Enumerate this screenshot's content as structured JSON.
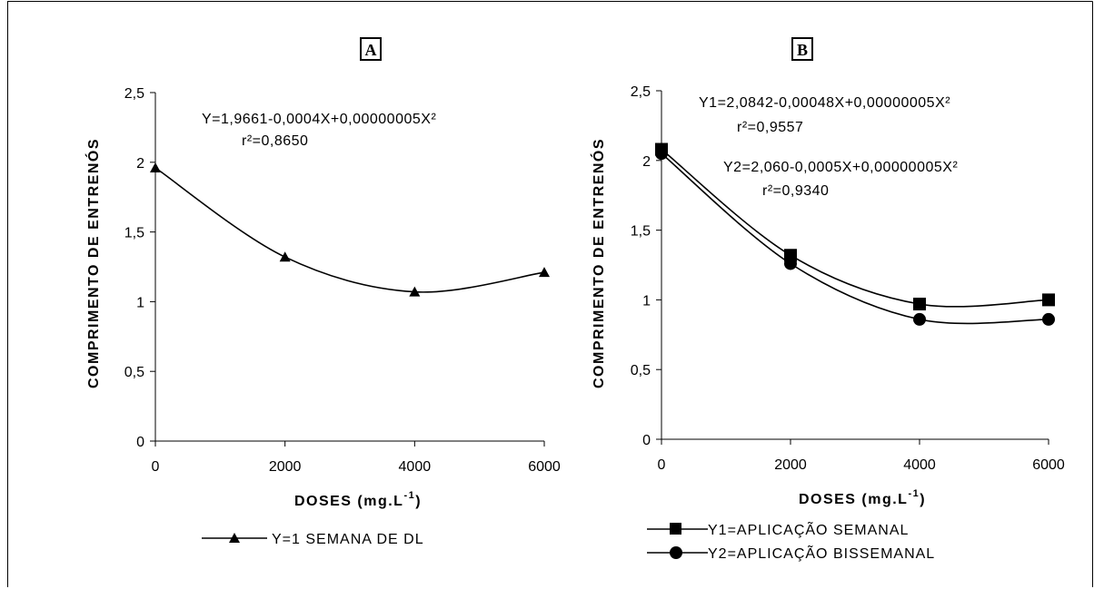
{
  "chart_data": [
    {
      "type": "line",
      "panel": "A",
      "ylabel": "COMPRIMENTO DE ENTRENÓS",
      "xlabel": "DOSES (mg.L",
      "xlabel_sup": "-1",
      "xlabel_close": ")",
      "xlim": [
        0,
        6000
      ],
      "ylim": [
        0,
        2.5
      ],
      "x_ticks": [
        "0",
        "2000",
        "4000",
        "6000"
      ],
      "y_ticks": [
        "0",
        "0,5",
        "1",
        "1,5",
        "2",
        "2,5"
      ],
      "grid": false,
      "legend_position": "bottom",
      "equations": [
        {
          "equation": "Y=1,9661-0,0004X+0,00000005X²",
          "r2": "r²=0,8650"
        }
      ],
      "series": [
        {
          "name": "Y=1 SEMANA DE DL",
          "marker": "triangle",
          "x": [
            0,
            2000,
            4000,
            6000
          ],
          "values": [
            1.96,
            1.32,
            1.07,
            1.21
          ],
          "fit": {
            "a": 1.9661,
            "b": -0.0004,
            "c": 5e-08
          }
        }
      ]
    },
    {
      "type": "line",
      "panel": "B",
      "ylabel": "COMPRIMENTO DE ENTRENÓS",
      "xlabel": "DOSES (mg.L",
      "xlabel_sup": "-1",
      "xlabel_close": ")",
      "xlim": [
        0,
        6000
      ],
      "ylim": [
        0,
        2.5
      ],
      "x_ticks": [
        "0",
        "2000",
        "4000",
        "6000"
      ],
      "y_ticks": [
        "0",
        "0,5",
        "1",
        "1,5",
        "2",
        "2,5"
      ],
      "grid": false,
      "legend_position": "bottom",
      "equations": [
        {
          "equation": "Y1=2,0842-0,00048X+0,00000005X²",
          "r2": "r²=0,9557"
        },
        {
          "equation": "Y2=2,060-0,0005X+0,00000005X²",
          "r2": "r²=0,9340"
        }
      ],
      "series": [
        {
          "name": "Y1=APLICAÇÃO SEMANAL",
          "marker": "square",
          "x": [
            0,
            2000,
            4000,
            6000
          ],
          "values": [
            2.08,
            1.32,
            0.97,
            1.0
          ],
          "fit": {
            "a": 2.0842,
            "b": -0.00048,
            "c": 5e-08
          }
        },
        {
          "name": "Y2=APLICAÇÃO BISSEMANAL",
          "marker": "circle",
          "x": [
            0,
            2000,
            4000,
            6000
          ],
          "values": [
            2.05,
            1.26,
            0.86,
            0.86
          ],
          "fit": {
            "a": 2.06,
            "b": -0.0005,
            "c": 5e-08
          }
        }
      ]
    }
  ]
}
